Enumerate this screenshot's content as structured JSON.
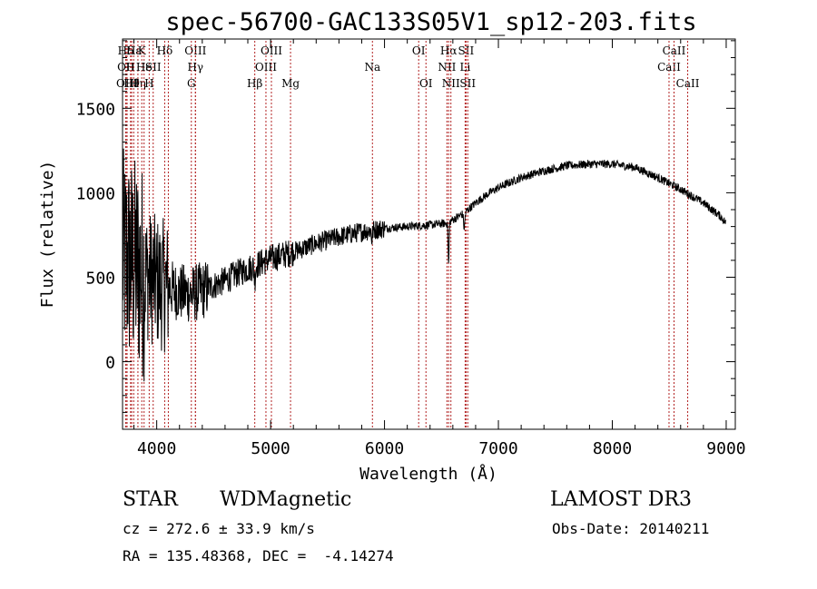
{
  "title": "spec-56700-GAC133S05V1_sp12-203.fits",
  "footer": {
    "cls": "STAR",
    "subclass": "WDMagnetic",
    "survey": "LAMOST DR3",
    "cz": "cz = 272.6 ± 33.9 km/s",
    "obs_date": "Obs-Date: 20140211",
    "radec": "RA = 135.48368, DEC =  -4.14274"
  },
  "chart_data": {
    "type": "line",
    "title": "spec-56700-GAC133S05V1_sp12-203.fits",
    "xlabel": "Wavelength (Å)",
    "ylabel": "Flux (relative)",
    "xlim": [
      3700,
      9080
    ],
    "ylim": [
      -400,
      1910
    ],
    "x_ticks": [
      4000,
      5000,
      6000,
      7000,
      8000,
      9000
    ],
    "y_ticks": [
      0,
      500,
      1000,
      1500
    ],
    "x_tick_labels": [
      "4000",
      "5000",
      "6000",
      "7000",
      "8000",
      "9000"
    ],
    "y_tick_labels": [
      "0",
      "500",
      "1000",
      "1500"
    ],
    "line_color": "#000000",
    "marker_color": "#b22222",
    "continuum": [
      [
        3700,
        620
      ],
      [
        3800,
        580
      ],
      [
        3900,
        520
      ],
      [
        4000,
        470
      ],
      [
        4100,
        440
      ],
      [
        4200,
        410
      ],
      [
        4300,
        400
      ],
      [
        4400,
        420
      ],
      [
        4500,
        450
      ],
      [
        4600,
        480
      ],
      [
        4700,
        520
      ],
      [
        4800,
        550
      ],
      [
        4900,
        580
      ],
      [
        5000,
        610
      ],
      [
        5200,
        650
      ],
      [
        5400,
        700
      ],
      [
        5600,
        740
      ],
      [
        5800,
        770
      ],
      [
        6000,
        790
      ],
      [
        6200,
        800
      ],
      [
        6400,
        810
      ],
      [
        6550,
        820
      ],
      [
        6700,
        880
      ],
      [
        6800,
        940
      ],
      [
        6900,
        990
      ],
      [
        7000,
        1030
      ],
      [
        7200,
        1090
      ],
      [
        7400,
        1130
      ],
      [
        7600,
        1160
      ],
      [
        7800,
        1170
      ],
      [
        8000,
        1170
      ],
      [
        8200,
        1150
      ],
      [
        8400,
        1090
      ],
      [
        8600,
        1020
      ],
      [
        8800,
        940
      ],
      [
        8950,
        860
      ],
      [
        9000,
        820
      ]
    ],
    "features": [
      {
        "center": 4861,
        "depth": 80,
        "width": 8
      },
      {
        "center": 5890,
        "depth": 60,
        "width": 6
      },
      {
        "center": 6563,
        "depth": 250,
        "width": 6
      },
      {
        "center": 6700,
        "depth": 90,
        "width": 8
      }
    ],
    "lines": [
      {
        "label": "Hδ",
        "wl": 3728,
        "row": 0
      },
      {
        "label": "OII",
        "wl": 3730,
        "row": 1
      },
      {
        "label": "OIII",
        "wl": 3740,
        "row": 2
      },
      {
        "label": "H",
        "wl": 3770,
        "row": 1
      },
      {
        "label": "Hθ",
        "wl": 3780,
        "row": 2
      },
      {
        "label": "Hε",
        "wl": 3798,
        "row": 0
      },
      {
        "label": "Hη",
        "wl": 3835,
        "row": 2
      },
      {
        "label": "K",
        "wl": 3869,
        "row": 0
      },
      {
        "label": "He",
        "wl": 3889,
        "row": 1
      },
      {
        "label": "H",
        "wl": 3934,
        "row": 2
      },
      {
        "label": "SII",
        "wl": 3969,
        "row": 1
      },
      {
        "label": "Hδ",
        "wl": 4070,
        "row": 0
      },
      {
        "label": "",
        "wl": 4102,
        "row": 0
      },
      {
        "label": "OIII",
        "wl": 4340,
        "row": 0
      },
      {
        "label": "Hγ",
        "wl": 4340,
        "row": 1
      },
      {
        "label": "G",
        "wl": 4304,
        "row": 2
      },
      {
        "label": "Hβ",
        "wl": 4861,
        "row": 2
      },
      {
        "label": "OIII",
        "wl": 4959,
        "row": 1
      },
      {
        "label": "OIII",
        "wl": 5007,
        "row": 0
      },
      {
        "label": "Mg",
        "wl": 5175,
        "row": 2
      },
      {
        "label": "Na",
        "wl": 5894,
        "row": 1
      },
      {
        "label": "OI",
        "wl": 6300,
        "row": 0
      },
      {
        "label": "OI",
        "wl": 6364,
        "row": 2
      },
      {
        "label": "NII",
        "wl": 6548,
        "row": 1
      },
      {
        "label": "Hα",
        "wl": 6563,
        "row": 0
      },
      {
        "label": "NII",
        "wl": 6583,
        "row": 2
      },
      {
        "label": "SII",
        "wl": 6716,
        "row": 0
      },
      {
        "label": "Li",
        "wl": 6708,
        "row": 1
      },
      {
        "label": "SII",
        "wl": 6731,
        "row": 2
      },
      {
        "label": "CaII",
        "wl": 8498,
        "row": 1
      },
      {
        "label": "CaII",
        "wl": 8542,
        "row": 0
      },
      {
        "label": "CaII",
        "wl": 8662,
        "row": 2
      }
    ]
  }
}
